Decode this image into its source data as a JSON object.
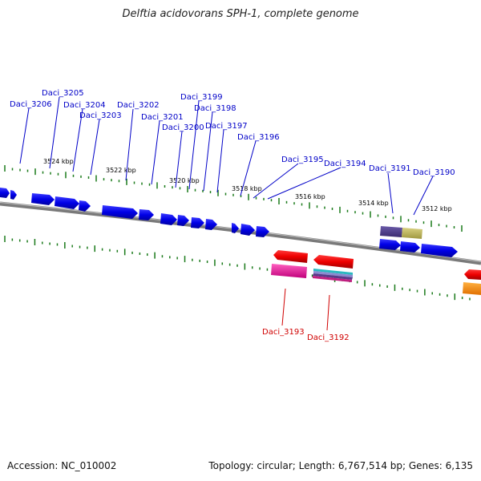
{
  "title": "Delftia acidovorans SPH-1, complete genome",
  "footer": {
    "accession": "Accession: NC_010002",
    "topology": "Topology: circular; Length: 6,767,514 bp; Genes: 6,135"
  },
  "scale_labels": [
    "3524 kbp",
    "3522 kbp",
    "3520 kbp",
    "3518 kbp",
    "3516 kbp",
    "3514 kbp",
    "3512 kbp"
  ],
  "forward_gene_labels": [
    "Daci_3206",
    "Daci_3205",
    "Daci_3204",
    "Daci_3203",
    "Daci_3202",
    "Daci_3201",
    "Daci_3200",
    "Daci_3199",
    "Daci_3198",
    "Daci_3197",
    "Daci_3196",
    "Daci_3195",
    "Daci_3194",
    "Daci_3191",
    "Daci_3190"
  ],
  "reverse_gene_labels": [
    "Daci_3193",
    "Daci_3192"
  ],
  "colors": {
    "forward_gene": "#0000e6",
    "reverse_gene": "#ee0000",
    "forward_label": "#0000c8",
    "reverse_label": "#d00000",
    "backbone": "#808080",
    "ticks": "#1a7a1a"
  }
}
